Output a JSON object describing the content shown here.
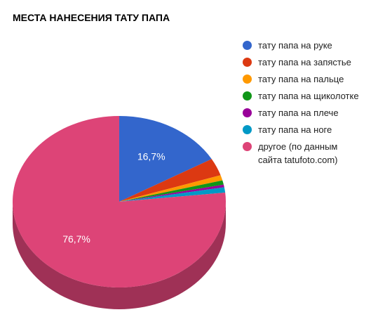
{
  "chart_data": {
    "type": "pie",
    "title": "МЕСТА НАНЕСЕНИЯ ТАТУ ПАПА",
    "categories": [
      "тату папа на руке",
      "тату папа на запястье",
      "тату папа на пальце",
      "тату папа на щиколотке",
      "тату папа на плече",
      "тату папа на ноге",
      "другое (по данным сайта tatufoto.com)"
    ],
    "values": [
      16.7,
      3.3,
      1,
      0.8,
      0.5,
      1,
      76.7
    ],
    "value_labels": [
      "16,7%",
      null,
      null,
      null,
      null,
      null,
      "76,7%"
    ],
    "colors": [
      "#3366cc",
      "#dc3912",
      "#ff9900",
      "#109618",
      "#990099",
      "#0099c6",
      "#dd4477"
    ],
    "legend": "right"
  }
}
